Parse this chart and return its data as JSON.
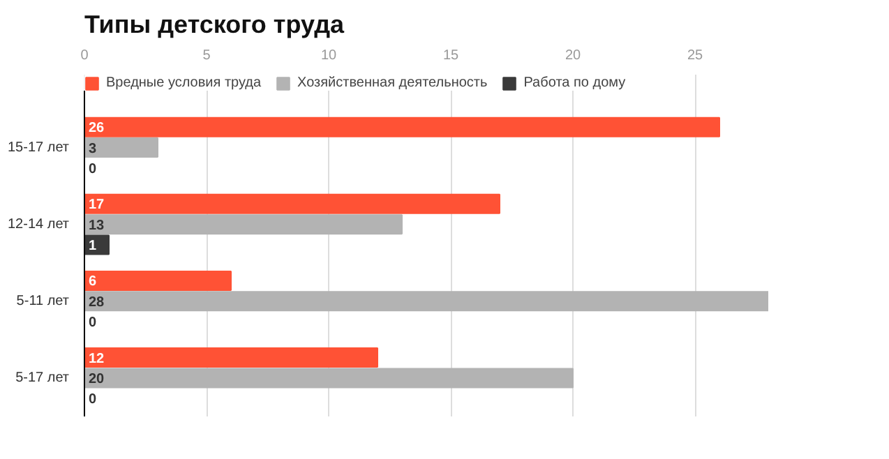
{
  "chart_data": {
    "type": "bar",
    "orientation": "horizontal",
    "title": "Типы детского труда",
    "categories": [
      "15-17 лет",
      "12-14 лет",
      "5-11 лет",
      "5-17 лет"
    ],
    "series": [
      {
        "name": "Вредные условия труда",
        "color": "#ff5235",
        "values": [
          26,
          17,
          6,
          12
        ]
      },
      {
        "name": "Хозяйственная деятельность",
        "color": "#b3b3b3",
        "values": [
          3,
          13,
          28,
          20
        ]
      },
      {
        "name": "Работа по дому",
        "color": "#3a3a3a",
        "values": [
          0,
          1,
          0,
          0
        ]
      }
    ],
    "xlim": [
      0,
      28
    ],
    "xticks": [
      0,
      5,
      10,
      15,
      20,
      25
    ],
    "grid": "x",
    "legend": "top left",
    "data_labels": true
  }
}
